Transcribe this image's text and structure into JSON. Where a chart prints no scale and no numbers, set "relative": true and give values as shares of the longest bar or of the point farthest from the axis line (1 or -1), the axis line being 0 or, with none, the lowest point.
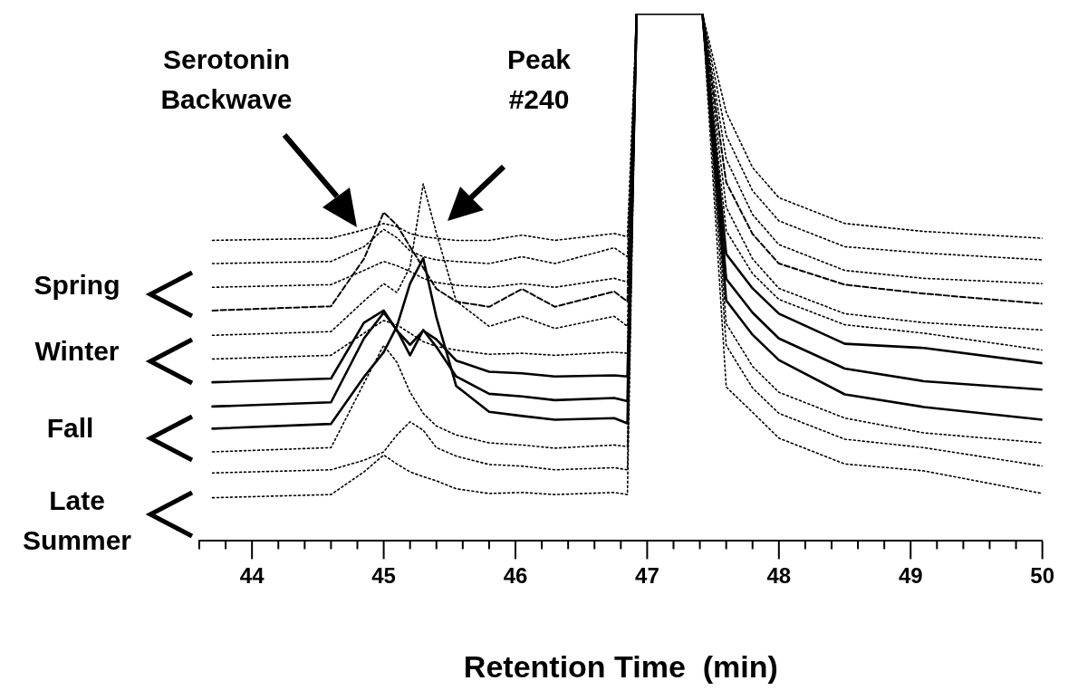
{
  "chart_data": {
    "type": "line",
    "relative": true,
    "xlabel": "Retention Time  (min)",
    "xlim": [
      43.6,
      50
    ],
    "xticks": [
      {
        "value": 43.6,
        "label": null
      },
      {
        "value": 43.8,
        "label": null
      },
      44,
      {
        "value": 44.2,
        "label": null
      },
      {
        "value": 44.4,
        "label": null
      },
      {
        "value": 44.6,
        "label": null
      },
      {
        "value": 44.8,
        "label": null
      },
      45,
      {
        "value": 45.2,
        "label": null
      },
      {
        "value": 45.4,
        "label": null
      },
      {
        "value": 45.6,
        "label": null
      },
      {
        "value": 45.8,
        "label": null
      },
      46,
      {
        "value": 46.2,
        "label": null
      },
      {
        "value": 46.4,
        "label": null
      },
      {
        "value": 46.6,
        "label": null
      },
      {
        "value": 46.8,
        "label": null
      },
      47,
      {
        "value": 47.2,
        "label": null
      },
      {
        "value": 47.4,
        "label": null
      },
      {
        "value": 47.6,
        "label": null
      },
      {
        "value": 47.8,
        "label": null
      },
      48,
      {
        "value": 48.2,
        "label": null
      },
      {
        "value": 48.4,
        "label": null
      },
      {
        "value": 48.6,
        "label": null
      },
      {
        "value": 48.8,
        "label": null
      },
      49,
      {
        "value": 49.2,
        "label": null
      },
      {
        "value": 49.4,
        "label": null
      },
      {
        "value": 49.6,
        "label": null
      },
      {
        "value": 49.8,
        "label": null
      },
      50
    ],
    "tick_labels": "x",
    "grid": false,
    "legend": false,
    "marker": "none",
    "x": [
      43.7,
      44.6,
      44.85,
      45.0,
      45.1,
      45.2,
      45.3,
      45.4,
      45.55,
      45.8,
      46.05,
      46.3,
      46.75,
      46.85,
      46.92,
      47.42,
      47.6,
      47.8,
      48.0,
      48.5,
      49.1,
      50.0
    ],
    "series": [
      {
        "color": "#000000",
        "line_style": "dotted",
        "values": [
          0.57,
          0.574,
          0.59,
          0.602,
          0.596,
          0.583,
          0.577,
          0.574,
          0.57,
          0.57,
          0.58,
          0.57,
          0.583,
          0.577,
          1,
          1,
          0.813,
          0.708,
          0.651,
          0.602,
          0.587,
          0.574
        ]
      },
      {
        "color": "#000000",
        "line_style": "dotted",
        "values": [
          0.526,
          0.53,
          0.558,
          0.591,
          0.575,
          0.55,
          0.539,
          0.533,
          0.53,
          0.526,
          0.539,
          0.526,
          0.556,
          0.539,
          1,
          1,
          0.769,
          0.664,
          0.607,
          0.558,
          0.546,
          0.533
        ]
      },
      {
        "color": "#000000",
        "line_style": "dotted",
        "values": [
          0.481,
          0.486,
          0.513,
          0.53,
          0.522,
          0.511,
          0.498,
          0.49,
          0.485,
          0.481,
          0.488,
          0.481,
          0.498,
          0.491,
          1,
          1,
          0.724,
          0.619,
          0.562,
          0.513,
          0.498,
          0.488
        ]
      },
      {
        "color": "#000000",
        "line_style": "dashed",
        "values": [
          0.437,
          0.445,
          0.535,
          0.623,
          0.599,
          0.558,
          0.518,
          0.478,
          0.454,
          0.444,
          0.478,
          0.444,
          0.473,
          0.454,
          1,
          1,
          0.68,
          0.582,
          0.526,
          0.486,
          0.469,
          0.45
        ]
      },
      {
        "color": "#000000",
        "line_style": "dotted",
        "values": [
          0.39,
          0.397,
          0.455,
          0.488,
          0.471,
          0.52,
          0.677,
          0.584,
          0.455,
          0.407,
          0.426,
          0.403,
          0.426,
          0.407,
          1,
          1,
          0.633,
          0.535,
          0.479,
          0.431,
          0.414,
          0.4
        ]
      },
      {
        "color": "#000000",
        "line_style": "dotted",
        "values": [
          0.345,
          0.352,
          0.394,
          0.418,
          0.41,
          0.394,
          0.378,
          0.369,
          0.362,
          0.354,
          0.356,
          0.352,
          0.358,
          0.356,
          1,
          1,
          0.588,
          0.507,
          0.458,
          0.41,
          0.394,
          0.362
        ]
      },
      {
        "color": "#000000",
        "line_style": "solid",
        "values": [
          0.301,
          0.308,
          0.414,
          0.437,
          0.399,
          0.372,
          0.399,
          0.382,
          0.342,
          0.321,
          0.318,
          0.312,
          0.314,
          0.312,
          1,
          1,
          0.544,
          0.479,
          0.431,
          0.374,
          0.366,
          0.337
        ]
      },
      {
        "color": "#000000",
        "line_style": "solid",
        "values": [
          0.255,
          0.263,
          0.384,
          0.433,
          0.4,
          0.352,
          0.4,
          0.368,
          0.312,
          0.279,
          0.274,
          0.267,
          0.271,
          0.265,
          1,
          1,
          0.497,
          0.433,
          0.384,
          0.327,
          0.303,
          0.287
        ]
      },
      {
        "color": "#000000",
        "line_style": "solid",
        "values": [
          0.213,
          0.222,
          0.311,
          0.358,
          0.407,
          0.488,
          0.536,
          0.424,
          0.294,
          0.245,
          0.237,
          0.23,
          0.233,
          0.223,
          1,
          1,
          0.456,
          0.391,
          0.343,
          0.278,
          0.254,
          0.23
        ]
      },
      {
        "color": "#000000",
        "line_style": "dotted",
        "values": [
          0.169,
          0.177,
          0.299,
          0.371,
          0.339,
          0.282,
          0.242,
          0.218,
          0.201,
          0.186,
          0.182,
          0.176,
          0.182,
          0.179,
          1,
          1,
          0.412,
          0.331,
          0.282,
          0.233,
          0.205,
          0.186
        ]
      },
      {
        "color": "#000000",
        "line_style": "dotted",
        "values": [
          0.129,
          0.135,
          0.153,
          0.169,
          0.201,
          0.226,
          0.21,
          0.177,
          0.161,
          0.145,
          0.142,
          0.135,
          0.139,
          0.135,
          1,
          1,
          0.371,
          0.29,
          0.242,
          0.193,
          0.177,
          0.142
        ]
      },
      {
        "color": "#000000",
        "line_style": "dotted",
        "values": [
          0.082,
          0.088,
          0.131,
          0.163,
          0.146,
          0.131,
          0.122,
          0.114,
          0.099,
          0.09,
          0.092,
          0.088,
          0.092,
          0.088,
          1,
          1,
          0.292,
          0.244,
          0.195,
          0.146,
          0.133,
          0.09
        ]
      }
    ],
    "annotations": [
      "Serotonin Backwave",
      "Peak #240",
      "Spring",
      "Winter",
      "Fall",
      "Late Summer"
    ]
  }
}
